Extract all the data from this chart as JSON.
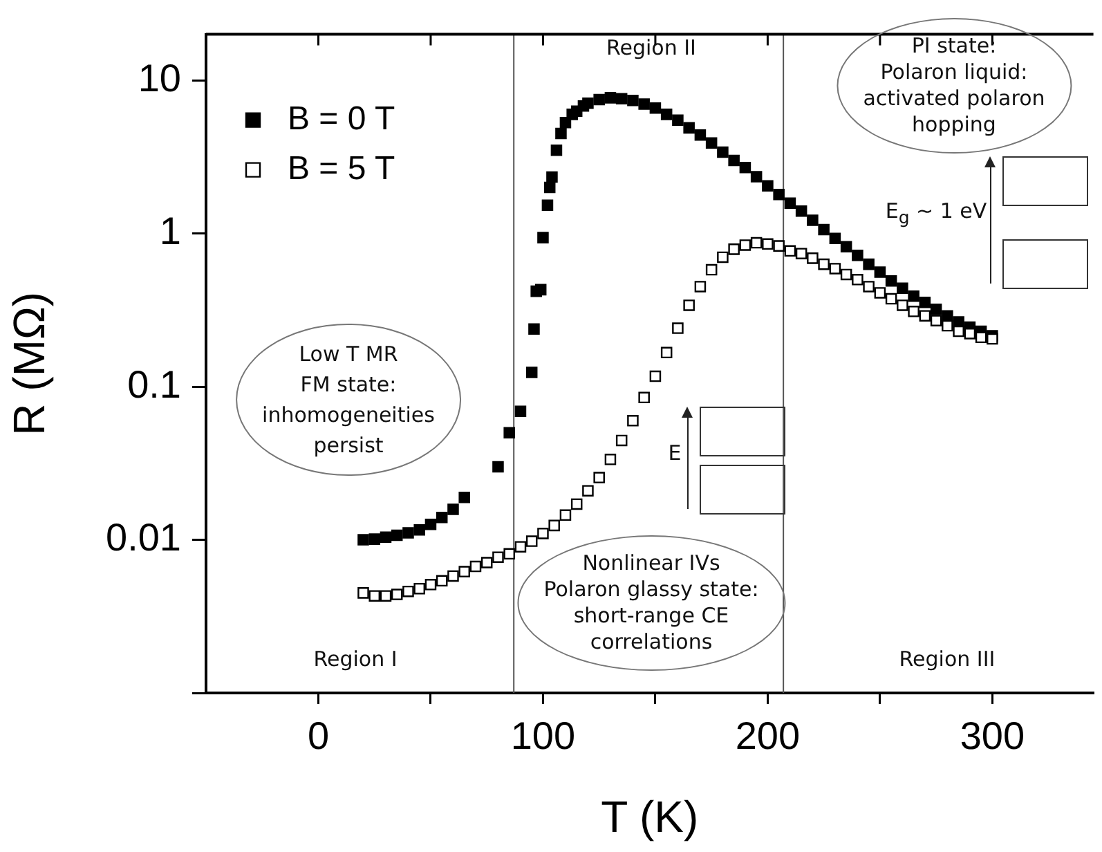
{
  "chart_data": {
    "type": "scatter",
    "xlabel": "T (K)",
    "ylabel": "R (MΩ)",
    "xlim": [
      -50,
      345
    ],
    "xticks": [
      0,
      {
        "value": 50,
        "label": null
      },
      100,
      {
        "value": 150,
        "label": null
      },
      200,
      {
        "value": 250,
        "label": null
      },
      300
    ],
    "ylim": [
      0.001,
      20
    ],
    "yticks": [
      {
        "value": 0.001,
        "label": null
      },
      0.01,
      0.1,
      1,
      10
    ],
    "log": "y",
    "grid": false,
    "legend": "top left",
    "marker": "square",
    "series": [
      {
        "name": "B = 0 T",
        "color": "#000000",
        "x": [
          20,
          25,
          30,
          35,
          40,
          45,
          50,
          55,
          60,
          65,
          80,
          85,
          90,
          95,
          96,
          97,
          99,
          100,
          102,
          103,
          104,
          106,
          108,
          110,
          113,
          115,
          118,
          120,
          125,
          130,
          135,
          140,
          145,
          150,
          155,
          160,
          165,
          170,
          175,
          180,
          185,
          190,
          195,
          200,
          205,
          210,
          215,
          220,
          225,
          230,
          235,
          240,
          245,
          250,
          255,
          260,
          265,
          270,
          275,
          280,
          285,
          290,
          295,
          300
        ],
        "values": [
          0.01,
          0.0101,
          0.0104,
          0.0107,
          0.0111,
          0.0116,
          0.0126,
          0.014,
          0.0158,
          0.0189,
          0.03,
          0.05,
          0.069,
          0.124,
          0.238,
          0.42,
          0.43,
          0.94,
          1.53,
          2.0,
          2.34,
          3.5,
          4.5,
          5.3,
          6.0,
          6.3,
          6.8,
          7.1,
          7.5,
          7.7,
          7.6,
          7.4,
          7.0,
          6.6,
          6.0,
          5.5,
          4.9,
          4.4,
          3.9,
          3.4,
          3.0,
          2.7,
          2.35,
          2.05,
          1.8,
          1.58,
          1.4,
          1.22,
          1.06,
          0.93,
          0.82,
          0.72,
          0.63,
          0.56,
          0.49,
          0.44,
          0.39,
          0.355,
          0.32,
          0.29,
          0.265,
          0.245,
          0.23,
          0.215
        ]
      },
      {
        "name": "B = 5 T",
        "color": "#000000",
        "x": [
          20,
          25,
          30,
          35,
          40,
          45,
          50,
          55,
          60,
          65,
          70,
          75,
          80,
          85,
          90,
          95,
          100,
          105,
          110,
          115,
          120,
          125,
          130,
          135,
          140,
          145,
          150,
          155,
          160,
          165,
          170,
          175,
          180,
          185,
          190,
          195,
          200,
          205,
          210,
          215,
          220,
          225,
          230,
          235,
          240,
          245,
          250,
          255,
          260,
          265,
          270,
          275,
          280,
          285,
          290,
          295,
          300
        ],
        "values": [
          0.0045,
          0.0043,
          0.0043,
          0.0044,
          0.0046,
          0.0048,
          0.0051,
          0.0054,
          0.0058,
          0.0062,
          0.0067,
          0.0071,
          0.0077,
          0.0081,
          0.009,
          0.0098,
          0.011,
          0.0124,
          0.0145,
          0.0171,
          0.0209,
          0.0255,
          0.0335,
          0.0445,
          0.06,
          0.085,
          0.117,
          0.167,
          0.241,
          0.34,
          0.45,
          0.58,
          0.7,
          0.79,
          0.84,
          0.87,
          0.855,
          0.83,
          0.77,
          0.74,
          0.69,
          0.63,
          0.59,
          0.54,
          0.5,
          0.45,
          0.41,
          0.375,
          0.34,
          0.31,
          0.29,
          0.27,
          0.25,
          0.23,
          0.222,
          0.21,
          0.205
        ]
      }
    ],
    "ref_lines": [
      {
        "axis": "x",
        "value": 87,
        "color": "#555555"
      },
      {
        "axis": "x",
        "value": 207,
        "color": "#555555"
      }
    ],
    "annotations": [
      "Region I",
      "Region II",
      "Region III",
      "Low T MR\nFM state:\ninhomogeneities\npersist",
      "Nonlinear IVs\nPolaron glassy state:\nshort-range CE\ncorrelations",
      "PI state:\nPolaron liquid:\nactivated polaron\nhopping",
      "E",
      "E$_{g}$ ~ 1 eV"
    ]
  }
}
